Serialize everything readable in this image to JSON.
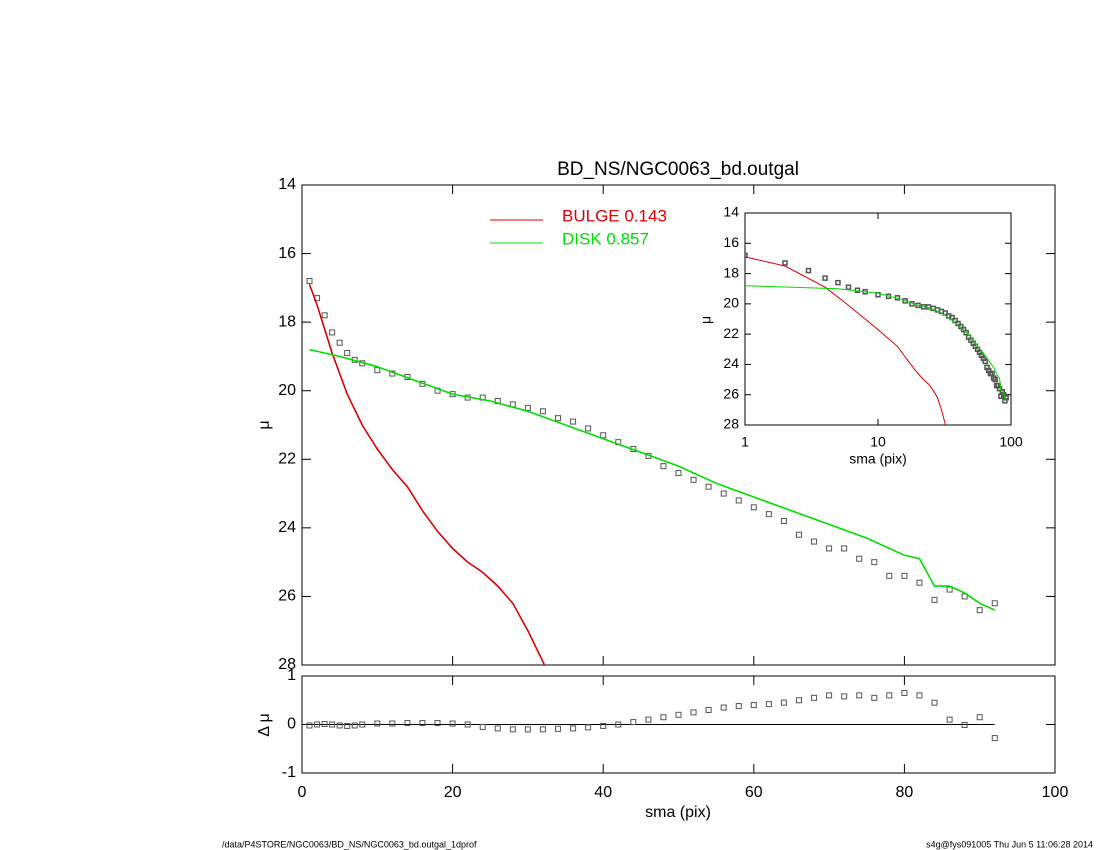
{
  "chart_data": [
    {
      "type": "scatter",
      "title": "BD_NS/NGC0063_bd.outgal",
      "y_label": "μ",
      "xlim": [
        0,
        100
      ],
      "ylim": [
        14,
        28
      ],
      "yticks": [
        14,
        16,
        18,
        20,
        22,
        24,
        26,
        28
      ],
      "y_inverted": true,
      "series": [
        {
          "marker": "square",
          "color": "#555555",
          "x": [
            1,
            2,
            3,
            4,
            5,
            6,
            7,
            8,
            10,
            12,
            14,
            16,
            18,
            20,
            22,
            24,
            26,
            28,
            30,
            32,
            34,
            36,
            38,
            40,
            42,
            44,
            46,
            48,
            50,
            52,
            54,
            56,
            58,
            60,
            62,
            64,
            66,
            68,
            70,
            72,
            74,
            76,
            78,
            80,
            82,
            84,
            86,
            88,
            90,
            92
          ],
          "values": [
            16.8,
            17.3,
            17.8,
            18.3,
            18.6,
            18.9,
            19.1,
            19.2,
            19.4,
            19.5,
            19.6,
            19.8,
            20.0,
            20.1,
            20.2,
            20.2,
            20.3,
            20.4,
            20.5,
            20.6,
            20.8,
            20.9,
            21.1,
            21.3,
            21.5,
            21.7,
            21.9,
            22.2,
            22.4,
            22.6,
            22.8,
            23.0,
            23.2,
            23.4,
            23.6,
            23.8,
            24.2,
            24.4,
            24.6,
            24.6,
            24.9,
            25.0,
            25.4,
            25.4,
            25.6,
            26.1,
            25.8,
            26.0,
            26.4,
            26.2
          ]
        },
        {
          "name": "BULGE  0.143",
          "color": "#dd0000",
          "x": [
            1,
            2,
            4,
            6,
            8,
            10,
            12,
            14,
            16,
            18,
            20,
            22,
            24,
            26,
            28,
            30,
            32.2
          ],
          "values": [
            16.9,
            17.5,
            18.9,
            20.1,
            21.0,
            21.7,
            22.3,
            22.8,
            23.5,
            24.1,
            24.6,
            25.0,
            25.3,
            25.7,
            26.2,
            27.0,
            28.0
          ]
        },
        {
          "name": "DISK  0.857",
          "color": "#00dd00",
          "x": [
            1,
            5,
            10,
            15,
            20,
            25,
            30,
            35,
            40,
            45,
            50,
            55,
            60,
            65,
            70,
            75,
            80,
            82,
            84,
            86,
            88,
            90,
            92
          ],
          "values": [
            18.8,
            19.0,
            19.3,
            19.7,
            20.1,
            20.3,
            20.6,
            21.0,
            21.4,
            21.8,
            22.2,
            22.7,
            23.1,
            23.5,
            23.9,
            24.3,
            24.8,
            24.9,
            25.7,
            25.7,
            25.9,
            26.2,
            26.4
          ]
        }
      ]
    },
    {
      "type": "scatter",
      "x_label": "sma (pix)",
      "y_label": "Δ μ",
      "xlim": [
        0,
        100
      ],
      "xticks": [
        0,
        20,
        40,
        60,
        80,
        100
      ],
      "ylim": [
        -1,
        1
      ],
      "yticks": [
        -1,
        0,
        1
      ],
      "series": [
        {
          "marker": "square",
          "color": "#555555",
          "x": [
            1,
            2,
            3,
            4,
            5,
            6,
            7,
            8,
            10,
            12,
            14,
            16,
            18,
            20,
            22,
            24,
            26,
            28,
            30,
            32,
            34,
            36,
            38,
            40,
            42,
            44,
            46,
            48,
            50,
            52,
            54,
            56,
            58,
            60,
            62,
            64,
            66,
            68,
            70,
            72,
            74,
            76,
            78,
            80,
            82,
            84,
            86,
            88,
            90,
            92
          ],
          "values": [
            -0.02,
            0.0,
            0.01,
            0.0,
            -0.02,
            -0.03,
            -0.02,
            0.0,
            0.02,
            0.02,
            0.03,
            0.03,
            0.03,
            0.02,
            0.0,
            -0.05,
            -0.08,
            -0.1,
            -0.1,
            -0.1,
            -0.09,
            -0.08,
            -0.06,
            -0.03,
            0.0,
            0.05,
            0.1,
            0.15,
            0.2,
            0.25,
            0.3,
            0.35,
            0.38,
            0.4,
            0.42,
            0.45,
            0.5,
            0.55,
            0.6,
            0.58,
            0.6,
            0.55,
            0.6,
            0.65,
            0.6,
            0.45,
            0.1,
            -0.01,
            0.15,
            -0.28
          ]
        }
      ]
    },
    {
      "type": "inset",
      "x_label": "sma (pix)",
      "y_label": "μ",
      "x_log": true,
      "xlim": [
        1,
        100
      ],
      "xticks": [
        1,
        10,
        100
      ],
      "ylim": [
        14,
        28
      ],
      "yticks": [
        14,
        16,
        18,
        20,
        22,
        24,
        26,
        28
      ],
      "y_inverted": true
    }
  ],
  "footer": {
    "left": "/data/P4STORE/NGC0063/BD_NS/NGC0063_bd.outgal_1dprof",
    "right": "s4g@fys091005  Thu Jun  5 11:06:28 2014"
  }
}
